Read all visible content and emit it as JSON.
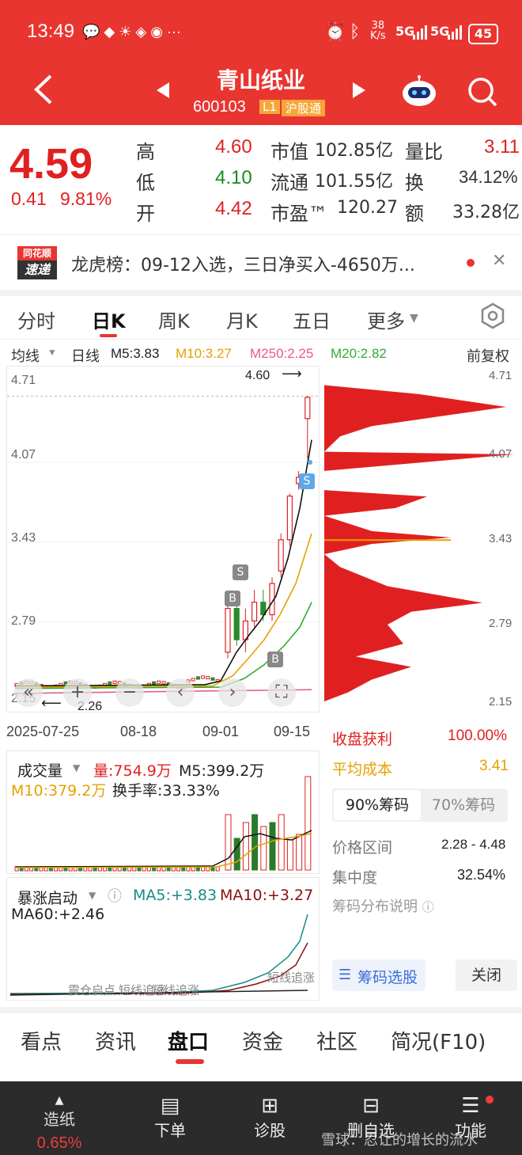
{
  "status_bar": {
    "time": "13:49",
    "notif_icons": "💬 ◆ ☀ ◈ ◉ ···",
    "net_speed_top": "38",
    "net_speed_unit": "K/s",
    "signal1": "5G",
    "signal2": "5G",
    "battery": "45"
  },
  "header": {
    "stock_name": "青山纸业",
    "stock_code": "600103",
    "level_badge": "L1",
    "market_badge": "沪股通"
  },
  "quote": {
    "price": "4.59",
    "change": "0.41",
    "change_pct": "9.81%",
    "high_label": "高",
    "high": "4.60",
    "low_label": "低",
    "low": "4.10",
    "open_label": "开",
    "open": "4.42",
    "mcap_label": "市值",
    "mcap": "102.85亿",
    "float_label": "流通",
    "float": "101.55亿",
    "pe_label": "市盈™",
    "pe": "120.27",
    "vr_label": "量比",
    "vr": "3.11",
    "turn_label": "换",
    "turn": "34.12%",
    "amt_label": "额",
    "amt": "33.28亿"
  },
  "news": {
    "logo_top": "同花顺",
    "logo_bottom": "速递",
    "text": "龙虎榜：09-12入选，三日净买入-4650万..."
  },
  "chart_tabs": [
    "分时",
    "日K",
    "周K",
    "月K",
    "五日",
    "更多"
  ],
  "legend": {
    "ma_type": "均线",
    "period": "日线",
    "ma5": "M5:3.83",
    "ma10": "M10:3.27",
    "ma250": "M250:2.25",
    "ma20": "M20:2.82",
    "adjust": "前复权"
  },
  "kline_axis": {
    "y_labels": [
      "4.71",
      "4.07",
      "3.43",
      "2.79",
      "2.15"
    ],
    "x_labels": [
      "2025-07-25",
      "08-18",
      "09-01",
      "09-15"
    ],
    "max_note": "4.60",
    "min_note": "2.26",
    "sell_marker": "S",
    "buy_marker": "B"
  },
  "volume_panel": {
    "title": "成交量",
    "vol": "量:754.9万",
    "m5": "M5:399.2万",
    "m10": "M10:379.2万",
    "turnover": "换手率:33.33%"
  },
  "indicator_panel": {
    "title": "暴涨启动",
    "ma5": "MA5:+3.83",
    "ma10": "MA10:+3.27",
    "ma60": "MA60:+2.46",
    "overlay1": "震仓启点",
    "overlay2": "短线追涨",
    "overlay3": "短线追涨",
    "overlay4": "短线追涨"
  },
  "chip_panel": {
    "y_labels": [
      "4.71",
      "4.07",
      "3.43",
      "2.79",
      "2.15"
    ],
    "profit_label": "收盘获利",
    "profit": "100.00%",
    "avg_label": "平均成本",
    "avg": "3.41",
    "tab90": "90%筹码",
    "tab70": "70%筹码",
    "range_label": "价格区间",
    "range": "2.28 - 4.48",
    "conc_label": "集中度",
    "conc": "32.54%",
    "explain": "筹码分布说明",
    "select_btn": "筹码选股",
    "close_btn": "关闭"
  },
  "bottom_tabs": [
    "看点",
    "资讯",
    "盘口",
    "资金",
    "社区",
    "简况(F10)"
  ],
  "bottom_nav": {
    "sector_name": "造纸",
    "sector_pct": "0.65%",
    "order": "下单",
    "diagnose": "诊股",
    "remove_fav": "删自选",
    "function": "功能",
    "watermark": "雪球：忍让的增长的流水"
  },
  "chart_data": {
    "type": "candlestick",
    "x_labels": [
      "2025-07-25",
      "08-18",
      "09-01",
      "09-15"
    ],
    "ylim": [
      2.15,
      4.71
    ],
    "candles_recent": [
      {
        "open": 2.55,
        "close": 2.9,
        "high": 3.0,
        "low": 2.5
      },
      {
        "open": 2.9,
        "close": 2.65,
        "high": 3.0,
        "low": 2.6
      },
      {
        "open": 2.65,
        "close": 2.8,
        "high": 2.9,
        "low": 2.55
      },
      {
        "open": 2.8,
        "close": 2.95,
        "high": 3.05,
        "low": 2.75
      },
      {
        "open": 2.95,
        "close": 2.85,
        "high": 3.05,
        "low": 2.8
      },
      {
        "open": 2.85,
        "close": 3.1,
        "high": 3.15,
        "low": 2.8
      },
      {
        "open": 3.2,
        "close": 3.45,
        "high": 3.5,
        "low": 3.15
      },
      {
        "open": 3.45,
        "close": 3.8,
        "high": 3.82,
        "low": 3.4
      },
      {
        "open": 3.9,
        "close": 3.95,
        "high": 4.0,
        "low": 3.85
      },
      {
        "open": 4.42,
        "close": 4.59,
        "high": 4.6,
        "low": 4.1
      }
    ]
  }
}
